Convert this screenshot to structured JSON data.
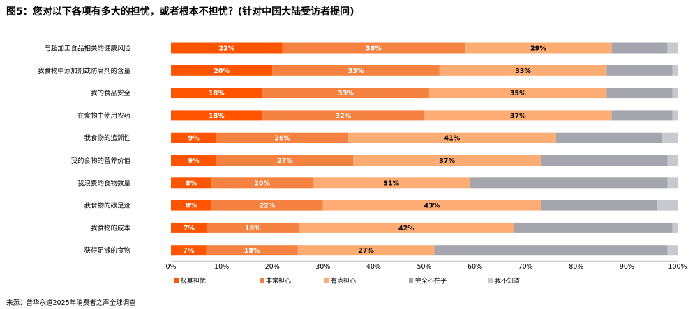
{
  "chart_data": {
    "type": "bar",
    "orientation": "horizontal",
    "stacked": true,
    "percent": true,
    "title": "图5：您对以下各项有多大的担忧，或者根本不担忧？(针对中国大陆受访者提问)",
    "categories": [
      "与超加工食品相关的健康风险",
      "我食物中添加剂或防腐剂的含量",
      "我的食品安全",
      "在食物中使用农药",
      "我食物的追溯性",
      "我的食物的营养价值",
      "我浪费的食物数量",
      "我食物的碳足迹",
      "我食物的成本",
      "获得足够的食物"
    ],
    "series": [
      {
        "name": "极其担忧",
        "color": "#ff5400",
        "label_color": "#ffffff",
        "values": [
          22,
          20,
          18,
          18,
          9,
          9,
          8,
          8,
          7,
          7
        ]
      },
      {
        "name": "非常担心",
        "color": "#f58240",
        "label_color": "#ffffff",
        "values": [
          36,
          33,
          33,
          32,
          26,
          27,
          20,
          22,
          18,
          18
        ]
      },
      {
        "name": "有点担心",
        "color": "#fdac74",
        "label_color": "#000000",
        "values": [
          29,
          33,
          35,
          37,
          41,
          37,
          31,
          43,
          42,
          27
        ]
      },
      {
        "name": "完全不在乎",
        "color": "#a5a6ad",
        "label_color": "#000000",
        "values": [
          11,
          13,
          13,
          12,
          21,
          25,
          39,
          23,
          31,
          46
        ]
      },
      {
        "name": "我不知道",
        "color": "#c8c9ce",
        "label_color": "#000000",
        "values": [
          2,
          1,
          1,
          1,
          3,
          2,
          2,
          4,
          1,
          2
        ]
      }
    ],
    "data_labels": [
      [
        "22%",
        "36%",
        "29%",
        "",
        ""
      ],
      [
        "20%",
        "33%",
        "33%",
        "",
        ""
      ],
      [
        "18%",
        "33%",
        "35%",
        "",
        ""
      ],
      [
        "18%",
        "32%",
        "37%",
        "",
        ""
      ],
      [
        "9%",
        "26%",
        "41%",
        "",
        ""
      ],
      [
        "9%",
        "27%",
        "37%",
        "",
        ""
      ],
      [
        "8%",
        "20%",
        "31%",
        "",
        ""
      ],
      [
        "8%",
        "22%",
        "43%",
        "",
        ""
      ],
      [
        "7%",
        "18%",
        "42%",
        "",
        ""
      ],
      [
        "7%",
        "18%",
        "27%",
        "",
        ""
      ]
    ],
    "xlim": [
      0,
      100
    ],
    "xticks": [
      "0%",
      "10%",
      "20%",
      "30%",
      "40%",
      "50%",
      "60%",
      "70%",
      "80%",
      "90%",
      "100%"
    ],
    "grid": false,
    "legend_position": "bottom"
  },
  "source": "来源：普华永道2025年消费者之声全球调查"
}
